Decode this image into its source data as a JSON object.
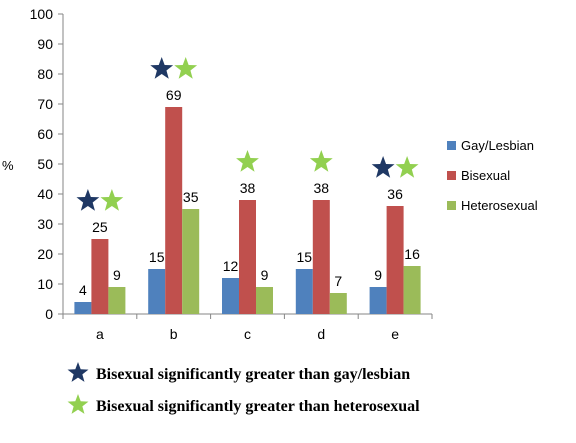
{
  "chart_data": {
    "type": "bar",
    "categories": [
      "a",
      "b",
      "c",
      "d",
      "e"
    ],
    "series": [
      {
        "name": "Gay/Lesbian",
        "values": [
          4,
          15,
          12,
          15,
          9
        ],
        "color": "#4f81bd"
      },
      {
        "name": "Bisexual",
        "values": [
          25,
          69,
          38,
          38,
          36
        ],
        "color": "#c0504d"
      },
      {
        "name": "Heterosexual",
        "values": [
          9,
          35,
          9,
          7,
          16
        ],
        "color": "#9bbb59"
      }
    ],
    "ylabel": "%",
    "ylim": [
      0,
      100
    ],
    "yticks": [
      0,
      10,
      20,
      30,
      40,
      50,
      60,
      70,
      80,
      90,
      100
    ],
    "grid": false,
    "legend_position": "right",
    "significance": {
      "vs_gay_lesbian": [
        "a",
        "b",
        "e"
      ],
      "vs_heterosexual": [
        "a",
        "b",
        "c",
        "d",
        "e"
      ]
    },
    "notes": [
      {
        "text": "Bisexual significantly greater than gay/lesbian",
        "star_color": "#1f3864"
      },
      {
        "text": "Bisexual significantly greater than heterosexual",
        "star_color": "#92d050"
      }
    ]
  }
}
